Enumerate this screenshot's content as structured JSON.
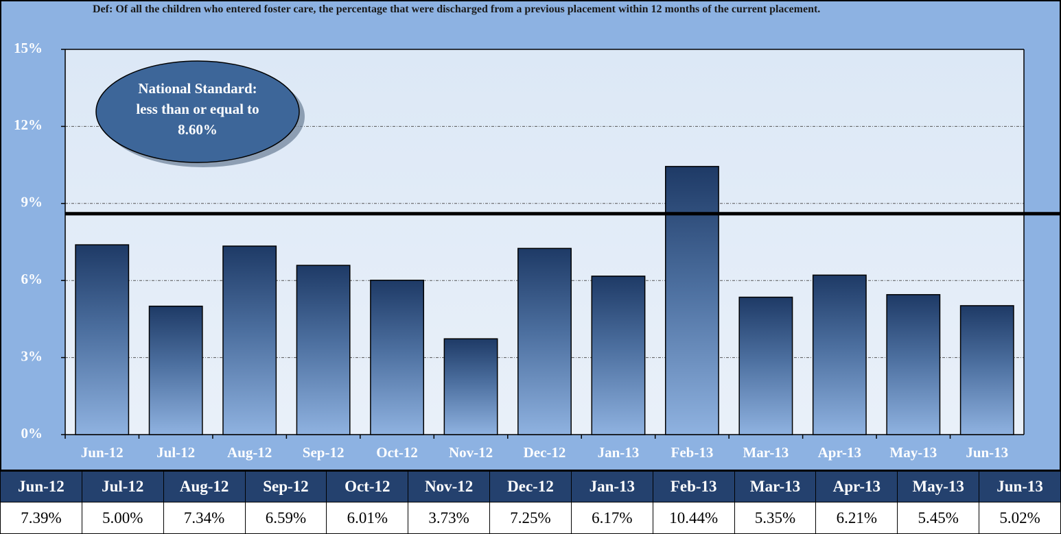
{
  "chart_data": {
    "type": "bar",
    "title": "Def: Of all the children who entered foster care, the percentage that were discharged from a previous placement within 12 months of the current placement.",
    "categories": [
      "Jun-12",
      "Jul-12",
      "Aug-12",
      "Sep-12",
      "Oct-12",
      "Nov-12",
      "Dec-12",
      "Jan-13",
      "Feb-13",
      "Mar-13",
      "Apr-13",
      "May-13",
      "Jun-13"
    ],
    "values": [
      7.39,
      5.0,
      7.34,
      6.59,
      6.01,
      3.73,
      7.25,
      6.17,
      10.44,
      5.35,
      6.21,
      5.45,
      5.02
    ],
    "value_labels": [
      "7.39%",
      "5.00%",
      "7.34%",
      "6.59%",
      "6.01%",
      "3.73%",
      "7.25%",
      "6.17%",
      "10.44%",
      "5.35%",
      "6.21%",
      "5.45%",
      "5.02%"
    ],
    "ylim": [
      0,
      15
    ],
    "yticks": [
      {
        "value": 0,
        "label": "0%"
      },
      {
        "value": 3,
        "label": "3%"
      },
      {
        "value": 6,
        "label": "6%"
      },
      {
        "value": 9,
        "label": "9%"
      },
      {
        "value": 12,
        "label": "12%"
      },
      {
        "value": 15,
        "label": "15%"
      }
    ],
    "grid": true,
    "threshold": 8.6,
    "annotation": [
      "National Standard:",
      "less than or equal to",
      "8.60%"
    ]
  }
}
